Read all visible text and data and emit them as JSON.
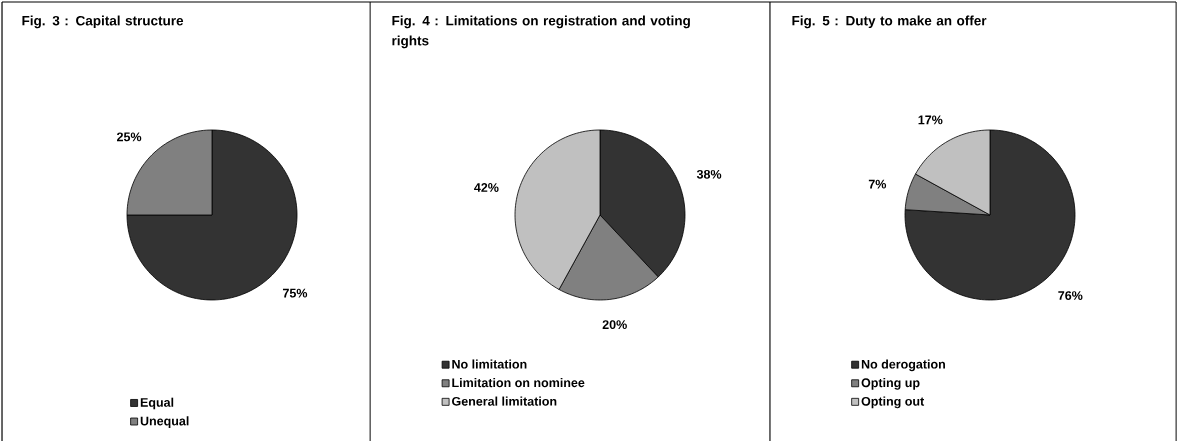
{
  "chart_data": [
    {
      "type": "pie",
      "title": "Fig. 3 : Capital structure",
      "categories": [
        "Equal",
        "Unequal"
      ],
      "values": [
        75,
        25
      ],
      "colors": [
        "#333333",
        "#808080"
      ],
      "value_labels": [
        "75%",
        "25%"
      ],
      "legend": "bottom left"
    },
    {
      "type": "pie",
      "title": "Fig. 4 : Limitations on registration and voting rights",
      "categories": [
        "No limitation",
        "Limitation on nominee",
        "General limitation"
      ],
      "values": [
        38,
        20,
        42
      ],
      "colors": [
        "#333333",
        "#808080",
        "#c0c0c0"
      ],
      "value_labels": [
        "38%",
        "20%",
        "42%"
      ],
      "legend": "bottom left"
    },
    {
      "type": "pie",
      "title": "Fig. 5 : Duty to make an offer",
      "categories": [
        "No derogation",
        "Opting up",
        "Opting out"
      ],
      "values": [
        76,
        7,
        17
      ],
      "colors": [
        "#333333",
        "#808080",
        "#c0c0c0"
      ],
      "value_labels": [
        "76%",
        "7%",
        "17%"
      ],
      "legend": "bottom left"
    }
  ]
}
